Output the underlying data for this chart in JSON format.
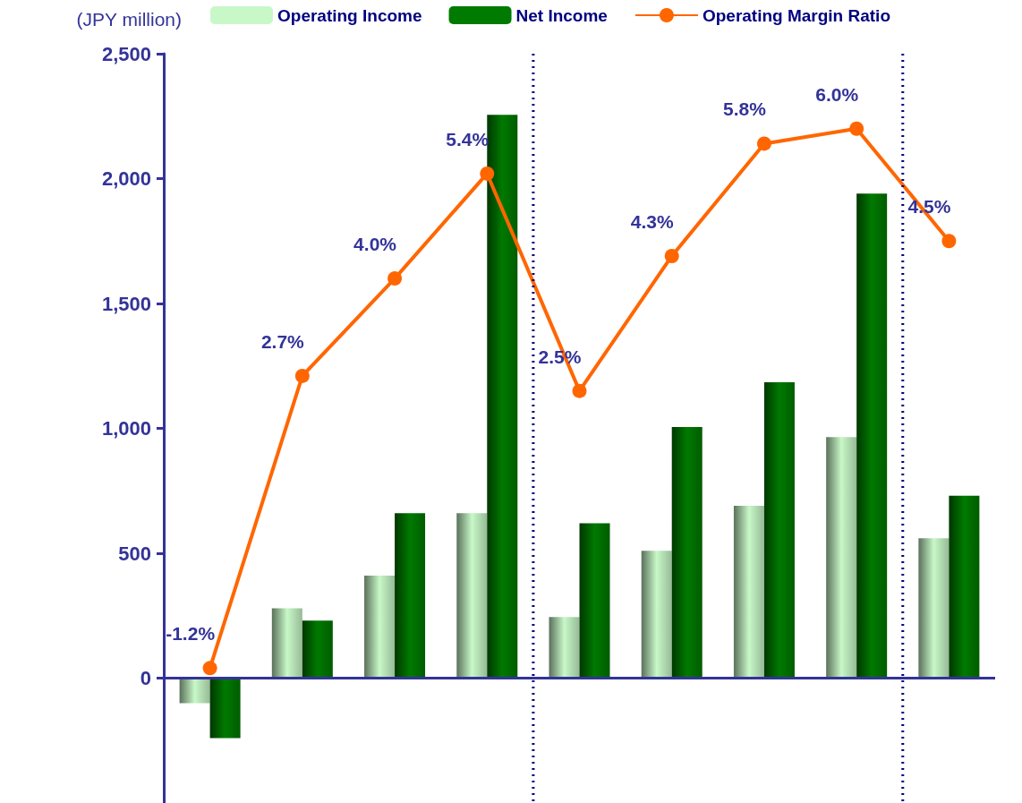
{
  "chart_data": {
    "type": "bar",
    "ylabel": "(JPY million)",
    "categories": [
      null,
      null,
      null,
      null,
      null,
      null,
      null,
      null,
      null
    ],
    "series": [
      {
        "name": "Operating Income",
        "color": "#c8f8c8",
        "values": [
          -100,
          280,
          410,
          660,
          245,
          510,
          690,
          965,
          560
        ]
      },
      {
        "name": "Net Income",
        "color": "#007a00",
        "values": [
          -240,
          230,
          660,
          2255,
          620,
          1005,
          1185,
          1940,
          730
        ]
      },
      {
        "name": "Operating Margin Ratio",
        "type": "line",
        "axis": "y2",
        "color": "#ff6600",
        "values": [
          -1.2,
          2.7,
          4.0,
          5.4,
          2.5,
          4.3,
          5.8,
          6.0,
          4.5
        ],
        "value_labels": [
          "-1.2%",
          "2.7%",
          "4.0%",
          "5.4%",
          "2.5%",
          "4.3%",
          "5.8%",
          "6.0%",
          "4.5%"
        ]
      }
    ],
    "ylim": [
      -500,
      2500
    ],
    "yticks": [
      {
        "value": 0,
        "label": "0"
      },
      {
        "value": 500,
        "label": "500"
      },
      {
        "value": 1000,
        "label": "1,000"
      },
      {
        "value": 1500,
        "label": "1,500"
      },
      {
        "value": 2000,
        "label": "2,000"
      },
      {
        "value": 2500,
        "label": "2,500"
      }
    ],
    "y2lim": [
      -3,
      7
    ],
    "ref_lines": [
      {
        "axis": "y",
        "value": 0,
        "color": "#333399",
        "line_style": "solid"
      }
    ],
    "marker": "circle",
    "line_style": "solid",
    "grid": false,
    "legend": "top",
    "tick_labels": "y"
  }
}
